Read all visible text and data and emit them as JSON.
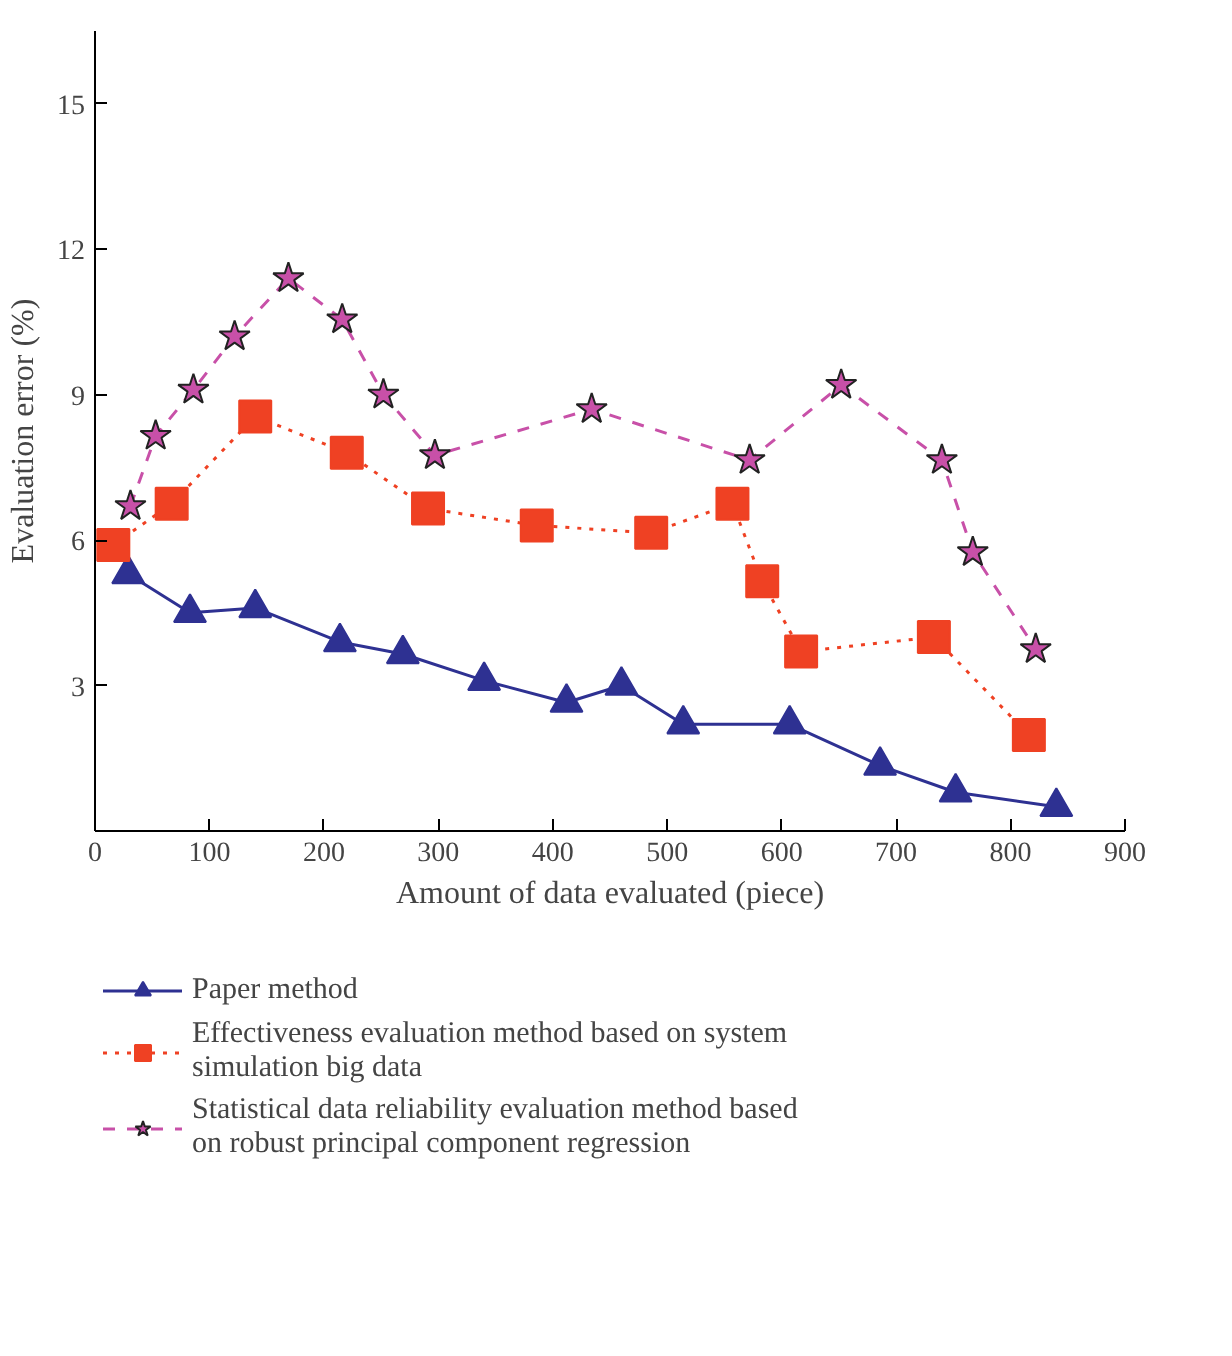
{
  "chart_data": {
    "type": "line",
    "xlabel": "Amount of data evaluated (piece)",
    "ylabel": "Evaluation error (%)",
    "xlim": [
      0,
      900
    ],
    "xticks": [
      0,
      100,
      200,
      300,
      400,
      500,
      600,
      700,
      800,
      900
    ],
    "ylim": [
      0,
      16.5
    ],
    "yticks": [
      3,
      6,
      9,
      12,
      15
    ],
    "grid": false,
    "legend": "bottom",
    "series": [
      {
        "name": "Paper method",
        "color": "#2e3192",
        "marker": "triangle",
        "line_style": "solid",
        "x": [
          29,
          83,
          140,
          214,
          269,
          340,
          412,
          460,
          514,
          607,
          686,
          752,
          840
        ],
        "values": [
          5.3,
          4.5,
          4.6,
          3.9,
          3.65,
          3.1,
          2.65,
          3.0,
          2.2,
          2.2,
          1.35,
          0.8,
          0.5
        ]
      },
      {
        "name": "Effectiveness evaluation method based on system simulation big data",
        "color": "#ef4123",
        "marker": "square",
        "line_style": "dotted",
        "x": [
          16,
          67,
          140,
          220,
          291,
          386,
          486,
          557,
          583,
          617,
          733,
          816
        ],
        "values": [
          5.9,
          6.75,
          8.55,
          7.8,
          6.65,
          6.3,
          6.15,
          6.75,
          5.15,
          3.7,
          4.0,
          1.98
        ]
      },
      {
        "name": "Statistical data reliability evaluation method based on robust principal component regression",
        "color": "#c850a8",
        "marker": "star",
        "line_style": "dashed",
        "x": [
          31,
          53,
          86,
          122,
          169,
          216,
          252,
          297,
          434,
          572,
          652,
          740,
          767,
          822
        ],
        "values": [
          6.7,
          8.15,
          9.1,
          10.2,
          11.4,
          10.55,
          9.0,
          7.75,
          8.7,
          7.65,
          9.2,
          7.65,
          5.75,
          3.75
        ]
      }
    ]
  }
}
